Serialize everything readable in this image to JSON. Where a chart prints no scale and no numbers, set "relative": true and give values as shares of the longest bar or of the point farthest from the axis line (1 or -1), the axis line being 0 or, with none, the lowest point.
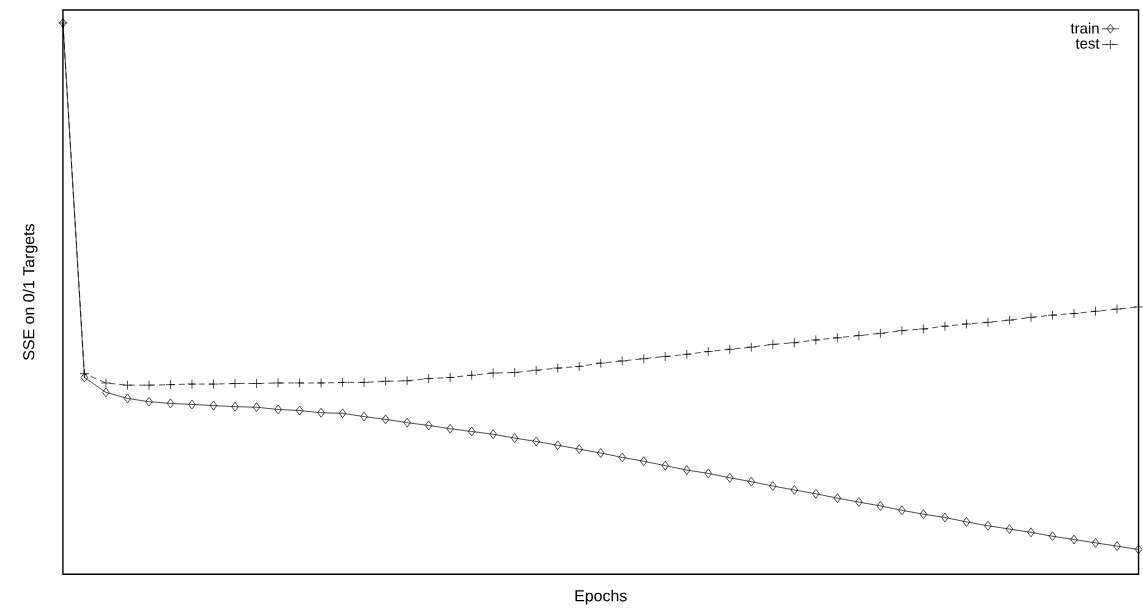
{
  "chart_data": {
    "type": "line",
    "xlabel": "Epochs",
    "ylabel": "SSE on 0/1 Targets",
    "relative": true,
    "legend": "top right",
    "categories": [
      null,
      null,
      null,
      null,
      null,
      null,
      null,
      null,
      null,
      null,
      null,
      null,
      null,
      null,
      null,
      null,
      null,
      null,
      null,
      null,
      null,
      null,
      null,
      null,
      null,
      null,
      null,
      null,
      null,
      null,
      null,
      null,
      null,
      null,
      null,
      null,
      null,
      null,
      null,
      null,
      null,
      null,
      null,
      null,
      null,
      null,
      null,
      null,
      null,
      null,
      null
    ],
    "series": [
      {
        "name": "train",
        "color": "#000000",
        "marker": "diamond",
        "line_style": "solid",
        "values": [
          1.0,
          0.357,
          0.33,
          0.319,
          0.313,
          0.31,
          0.308,
          0.306,
          0.304,
          0.303,
          0.299,
          0.297,
          0.293,
          0.292,
          0.286,
          0.281,
          0.275,
          0.27,
          0.264,
          0.259,
          0.254,
          0.247,
          0.241,
          0.234,
          0.227,
          0.22,
          0.212,
          0.205,
          0.197,
          0.189,
          0.183,
          0.175,
          0.168,
          0.16,
          0.153,
          0.146,
          0.138,
          0.131,
          0.124,
          0.116,
          0.109,
          0.103,
          0.095,
          0.088,
          0.082,
          0.076,
          0.069,
          0.063,
          0.057,
          0.051,
          0.045
        ]
      },
      {
        "name": "test",
        "color": "#000000",
        "marker": "cross",
        "line_style": "dashed",
        "values": [
          1.0,
          0.364,
          0.347,
          0.343,
          0.343,
          0.344,
          0.345,
          0.345,
          0.346,
          0.346,
          0.347,
          0.347,
          0.347,
          0.348,
          0.348,
          0.35,
          0.351,
          0.355,
          0.357,
          0.361,
          0.365,
          0.366,
          0.37,
          0.374,
          0.377,
          0.383,
          0.387,
          0.391,
          0.395,
          0.399,
          0.404,
          0.408,
          0.412,
          0.417,
          0.42,
          0.425,
          0.429,
          0.433,
          0.437,
          0.442,
          0.445,
          0.45,
          0.454,
          0.457,
          0.461,
          0.466,
          0.47,
          0.473,
          0.477,
          0.481,
          0.485
        ]
      }
    ]
  }
}
